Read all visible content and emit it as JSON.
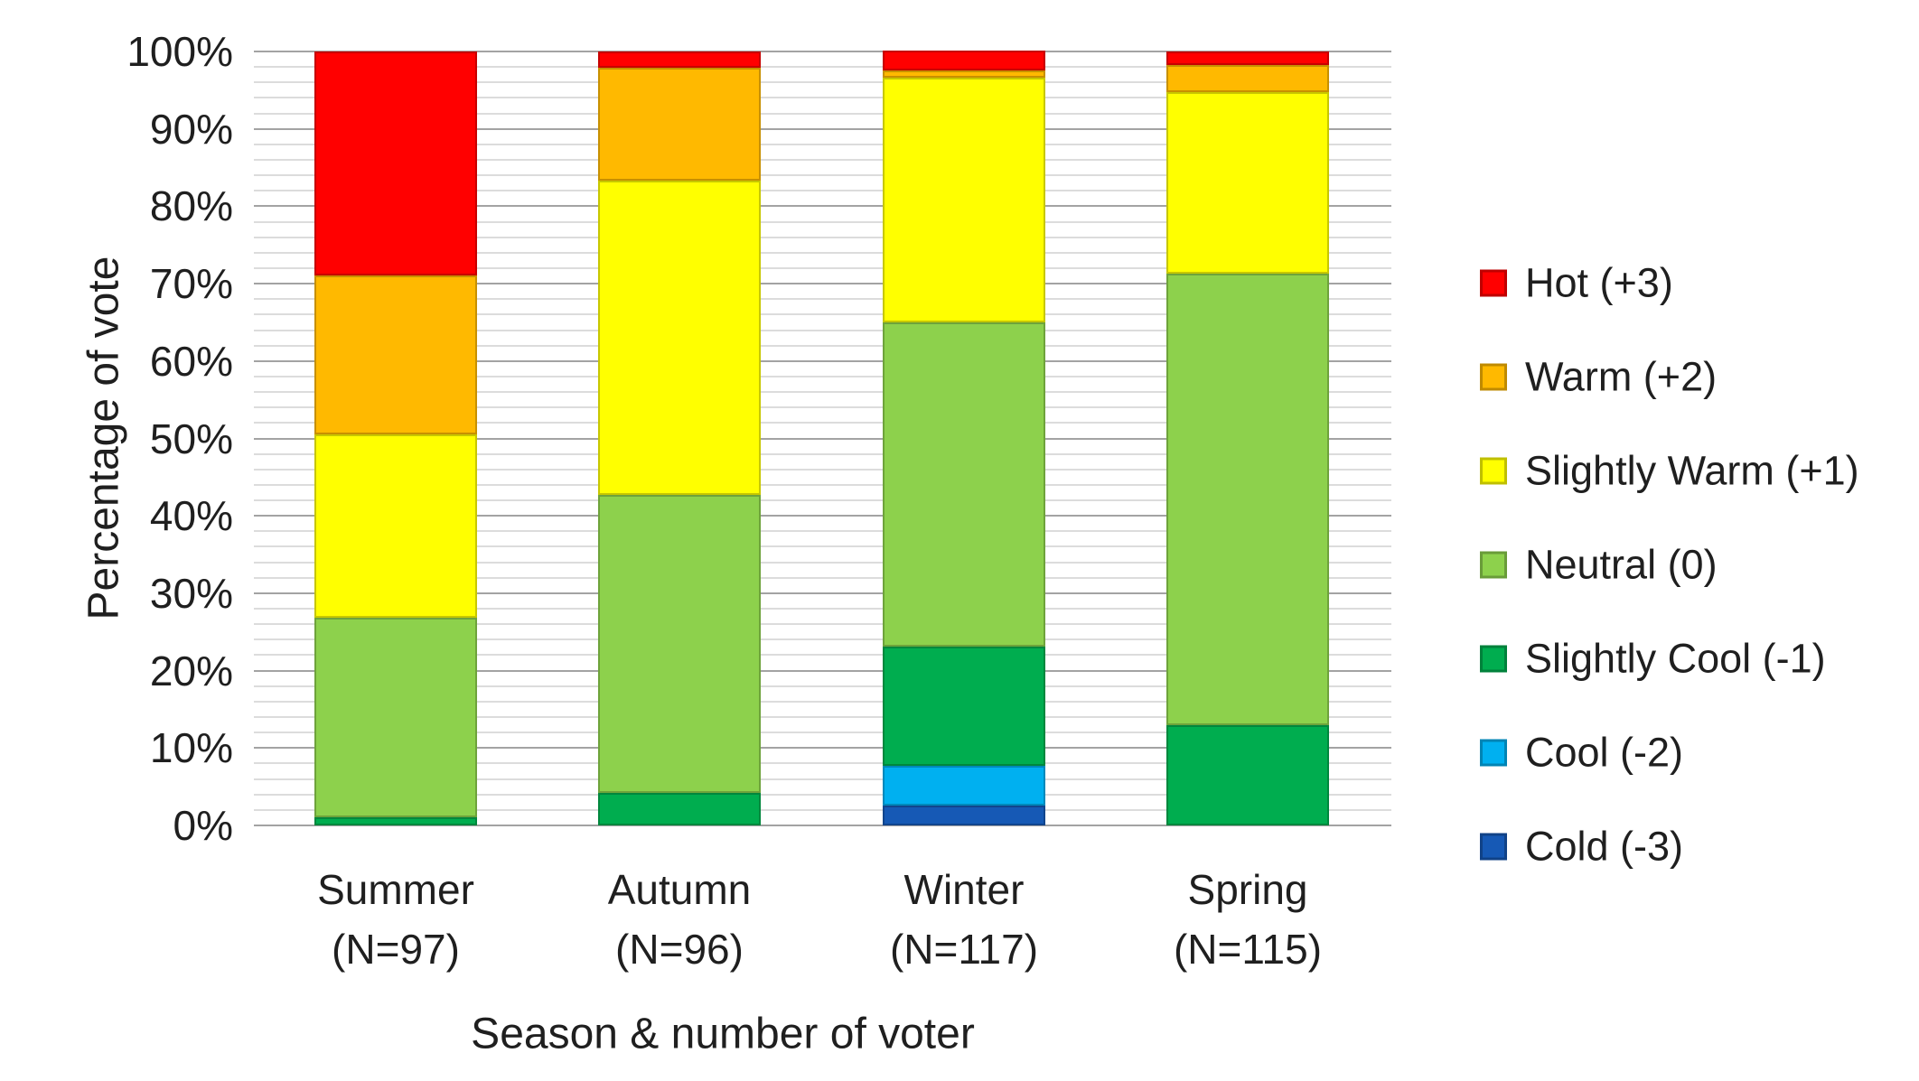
{
  "chart_data": {
    "type": "bar",
    "stacked": true,
    "percent_stacked": true,
    "title": "",
    "xlabel": "Season & number of voter",
    "ylabel": "Percentage of vote",
    "ylim": [
      0,
      100
    ],
    "ytick_step": 10,
    "minor_gridline_step": 2,
    "grid": "on",
    "legend_position": "right",
    "ytick_labels": [
      "100%",
      "90%",
      "80%",
      "70%",
      "60%",
      "50%",
      "40%",
      "30%",
      "20%",
      "10%",
      "0%"
    ],
    "categories": [
      {
        "season": "Summer",
        "n_label": "(N=97)"
      },
      {
        "season": "Autumn",
        "n_label": "(N=96)"
      },
      {
        "season": "Winter",
        "n_label": "(N=117)"
      },
      {
        "season": "Spring",
        "n_label": "(N=115)"
      }
    ],
    "series": [
      {
        "name": "Hot (+3)",
        "color": "#FF0000",
        "values": [
          28.9,
          2.1,
          2.6,
          1.7
        ]
      },
      {
        "name": "Warm (+2)",
        "color": "#FFB900",
        "values": [
          20.6,
          14.6,
          0.9,
          3.5
        ]
      },
      {
        "name": "Slightly Warm (+1)",
        "color": "#FFFF00",
        "values": [
          23.7,
          40.6,
          31.6,
          23.5
        ]
      },
      {
        "name": "Neutral (0)",
        "color": "#8DD14C",
        "values": [
          25.8,
          38.5,
          41.9,
          58.3
        ]
      },
      {
        "name": "Slightly Cool (-1)",
        "color": "#00AD4F",
        "values": [
          1.0,
          4.2,
          15.4,
          13.0
        ]
      },
      {
        "name": "Cool (-2)",
        "color": "#00B0F0",
        "values": [
          0,
          0,
          5.1,
          0
        ]
      },
      {
        "name": "Cold (-3)",
        "color": "#1659B5",
        "values": [
          0,
          0,
          2.6,
          0
        ]
      }
    ]
  },
  "colors": {
    "major_gridline": "#a3a3a3",
    "minor_gridline": "#dcdcdc",
    "text": "#1f1f1f",
    "background": "#ffffff"
  }
}
